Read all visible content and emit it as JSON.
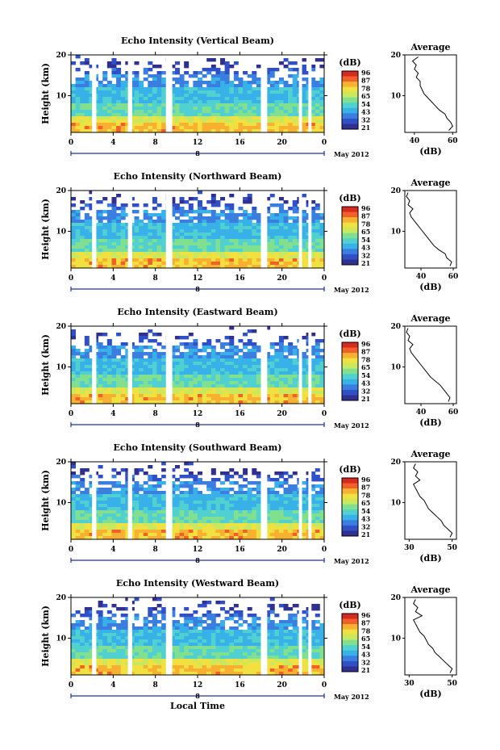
{
  "colors": {
    "scale": [
      "#303090",
      "#3050c8",
      "#3a7fe0",
      "#38b0e8",
      "#50d0d0",
      "#80e090",
      "#c8e860",
      "#f0e040",
      "#f8b030",
      "#f06028",
      "#d82820"
    ]
  },
  "chart_data": [
    {
      "type": "heatmap",
      "title": "Echo Intensity (Vertical Beam)",
      "ylabel": "Height (km)",
      "xlabel": "",
      "x_ticks": [
        "0",
        "4",
        "8",
        "12",
        "16",
        "20",
        "0"
      ],
      "x_range_hours": [
        0,
        24
      ],
      "y_ticks": [
        "20",
        "10"
      ],
      "y_range_km": [
        1,
        20
      ],
      "date_label": "May 2012",
      "day_label": "8",
      "gaps_hours": [
        [
          2.0,
          2.4
        ],
        [
          5.4,
          5.8
        ],
        [
          9.0,
          9.6
        ],
        [
          18.0,
          18.6
        ],
        [
          21.6,
          21.9
        ],
        [
          22.5,
          22.8
        ]
      ],
      "colorbar": {
        "unit": "(dB)",
        "labels": [
          "96",
          "87",
          "78",
          "65",
          "54",
          "43",
          "32",
          "21"
        ]
      },
      "average_profile": {
        "title": "Average",
        "xlabel": "(dB)",
        "x_ticks": [
          "40",
          "60"
        ],
        "x_range": [
          35,
          62
        ],
        "y_ticks": [
          "20",
          "10"
        ],
        "height_km": [
          1.5,
          2.5,
          3.5,
          4.5,
          5.5,
          6.5,
          7.5,
          8.5,
          9.5,
          10.5,
          11.5,
          12.5,
          13.5,
          14.5,
          15.5,
          16.5,
          17.5,
          18.5,
          19.5
        ],
        "db": [
          58,
          60,
          59,
          57,
          56,
          53,
          51,
          49,
          47,
          45,
          44,
          43,
          43,
          41,
          42,
          40,
          41,
          39,
          42
        ]
      }
    },
    {
      "type": "heatmap",
      "title": "Echo Intensity (Northward Beam)",
      "ylabel": "Height (km)",
      "xlabel": "",
      "x_ticks": [
        "0",
        "4",
        "8",
        "12",
        "16",
        "20",
        "0"
      ],
      "x_range_hours": [
        0,
        24
      ],
      "y_ticks": [
        "20",
        "10"
      ],
      "y_range_km": [
        1,
        20
      ],
      "date_label": "May 2012",
      "day_label": "8",
      "gaps_hours": [
        [
          2.0,
          2.4
        ],
        [
          5.4,
          5.8
        ],
        [
          9.0,
          9.6
        ],
        [
          18.0,
          18.6
        ],
        [
          21.6,
          21.9
        ],
        [
          22.5,
          22.8
        ]
      ],
      "colorbar": {
        "unit": "(dB)",
        "labels": [
          "96",
          "87",
          "78",
          "65",
          "54",
          "43",
          "32",
          "21"
        ]
      },
      "average_profile": {
        "title": "Average",
        "xlabel": "(dB)",
        "x_ticks": [
          "40",
          "60"
        ],
        "x_range": [
          30,
          62
        ],
        "y_ticks": [
          "20",
          "10"
        ],
        "height_km": [
          1.5,
          2.5,
          3.5,
          4.5,
          5.5,
          6.5,
          7.5,
          8.5,
          9.5,
          10.5,
          11.5,
          12.5,
          13.5,
          14.5,
          15.5,
          16.5,
          17.5,
          18.5,
          19.5
        ],
        "db": [
          58,
          59,
          56,
          55,
          51,
          48,
          46,
          44,
          42,
          40,
          38,
          36,
          34,
          33,
          35,
          32,
          33,
          31,
          32
        ]
      }
    },
    {
      "type": "heatmap",
      "title": "Echo Intensity (Eastward Beam)",
      "ylabel": "Height (km)",
      "xlabel": "",
      "x_ticks": [
        "0",
        "4",
        "8",
        "12",
        "16",
        "20",
        "0"
      ],
      "x_range_hours": [
        0,
        24
      ],
      "y_ticks": [
        "20",
        "10"
      ],
      "y_range_km": [
        1,
        20
      ],
      "date_label": "May 2012",
      "day_label": "8",
      "gaps_hours": [
        [
          2.0,
          2.4
        ],
        [
          5.4,
          5.8
        ],
        [
          9.0,
          9.6
        ],
        [
          18.0,
          18.6
        ],
        [
          21.6,
          21.9
        ],
        [
          22.5,
          22.8
        ]
      ],
      "colorbar": {
        "unit": "(dB)",
        "labels": [
          "96",
          "87",
          "78",
          "65",
          "54",
          "43",
          "32",
          "21"
        ]
      },
      "average_profile": {
        "title": "Average",
        "xlabel": "(dB)",
        "x_ticks": [
          "40",
          "60"
        ],
        "x_range": [
          30,
          62
        ],
        "y_ticks": [
          "20",
          "10"
        ],
        "height_km": [
          1.5,
          2.5,
          3.5,
          4.5,
          5.5,
          6.5,
          7.5,
          8.5,
          9.5,
          10.5,
          11.5,
          12.5,
          13.5,
          14.5,
          15.5,
          16.5,
          17.5,
          18.5,
          19.5
        ],
        "db": [
          57,
          58,
          56,
          54,
          52,
          49,
          46,
          44,
          42,
          40,
          38,
          36,
          34,
          33,
          35,
          32,
          33,
          31,
          32
        ]
      }
    },
    {
      "type": "heatmap",
      "title": "Echo Intensity (Southward Beam)",
      "ylabel": "Height (km)",
      "xlabel": "",
      "x_ticks": [
        "0",
        "4",
        "8",
        "12",
        "16",
        "20",
        "0"
      ],
      "x_range_hours": [
        0,
        24
      ],
      "y_ticks": [
        "20",
        "10"
      ],
      "y_range_km": [
        1,
        20
      ],
      "date_label": "May 2012",
      "day_label": "8",
      "gaps_hours": [
        [
          2.0,
          2.4
        ],
        [
          5.4,
          5.8
        ],
        [
          9.0,
          9.6
        ],
        [
          18.0,
          18.6
        ],
        [
          21.6,
          21.9
        ],
        [
          22.5,
          22.8
        ]
      ],
      "colorbar": {
        "unit": "(dB)",
        "labels": [
          "96",
          "87",
          "78",
          "65",
          "54",
          "43",
          "32",
          "21"
        ]
      },
      "average_profile": {
        "title": "Average",
        "xlabel": "(dB)",
        "x_ticks": [
          "30",
          "50"
        ],
        "x_range": [
          28,
          52
        ],
        "y_ticks": [
          "20",
          "10"
        ],
        "height_km": [
          1.5,
          2.5,
          3.5,
          4.5,
          5.5,
          6.5,
          7.5,
          8.5,
          9.5,
          10.5,
          11.5,
          12.5,
          13.5,
          14.5,
          15.5,
          16.5,
          17.5,
          18.5,
          19.5
        ],
        "db": [
          49,
          50,
          48,
          46,
          45,
          43,
          41,
          39,
          38,
          37,
          35,
          34,
          33,
          32,
          35,
          33,
          34,
          32,
          33
        ]
      }
    },
    {
      "type": "heatmap",
      "title": "Echo Intensity (Westward Beam)",
      "ylabel": "Height (km)",
      "xlabel": "Local Time",
      "x_ticks": [
        "0",
        "4",
        "8",
        "12",
        "16",
        "20",
        "0"
      ],
      "x_range_hours": [
        0,
        24
      ],
      "y_ticks": [
        "20",
        "10"
      ],
      "y_range_km": [
        1,
        20
      ],
      "date_label": "May 2012",
      "day_label": "8",
      "gaps_hours": [
        [
          2.0,
          2.4
        ],
        [
          5.4,
          5.8
        ],
        [
          9.0,
          9.6
        ],
        [
          18.0,
          18.6
        ],
        [
          21.6,
          21.9
        ],
        [
          22.5,
          22.8
        ]
      ],
      "colorbar": {
        "unit": "(dB)",
        "labels": [
          "96",
          "87",
          "78",
          "65",
          "54",
          "43",
          "32",
          "21"
        ]
      },
      "average_profile": {
        "title": "Average",
        "xlabel": "(dB)",
        "x_ticks": [
          "30",
          "50"
        ],
        "x_range": [
          28,
          52
        ],
        "y_ticks": [
          "20",
          "10"
        ],
        "height_km": [
          1.5,
          2.5,
          3.5,
          4.5,
          5.5,
          6.5,
          7.5,
          8.5,
          9.5,
          10.5,
          11.5,
          12.5,
          13.5,
          14.5,
          15.5,
          16.5,
          17.5,
          18.5,
          19.5
        ],
        "db": [
          49,
          50,
          48,
          46,
          44,
          42,
          41,
          39,
          38,
          37,
          35,
          34,
          33,
          32,
          36,
          33,
          34,
          32,
          33
        ]
      }
    }
  ]
}
